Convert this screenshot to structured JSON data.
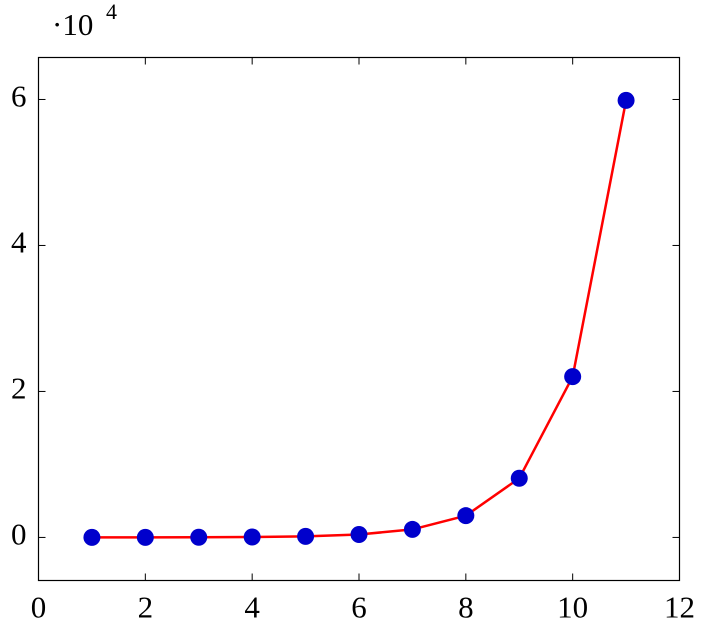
{
  "chart_data": {
    "type": "line",
    "y_scale_label": {
      "base": "·10",
      "exponent": "4"
    },
    "x": [
      1,
      2,
      3,
      4,
      5,
      6,
      7,
      8,
      9,
      10,
      11
    ],
    "series": [
      {
        "color": "#ff0000",
        "marker_color": "#0000cc",
        "values": [
          2.7,
          7.4,
          20,
          55,
          148,
          403,
          1097,
          2981,
          8103,
          22026,
          59874
        ]
      }
    ],
    "xlim": [
      0,
      12
    ],
    "xticks": [
      0,
      2,
      4,
      6,
      8,
      10,
      12
    ],
    "ylim": [
      -5900,
      65750
    ],
    "yticks": [
      {
        "value": 0,
        "label": "0"
      },
      {
        "value": 20000,
        "label": "2"
      },
      {
        "value": 40000,
        "label": "4"
      },
      {
        "value": 60000,
        "label": "6"
      }
    ]
  }
}
